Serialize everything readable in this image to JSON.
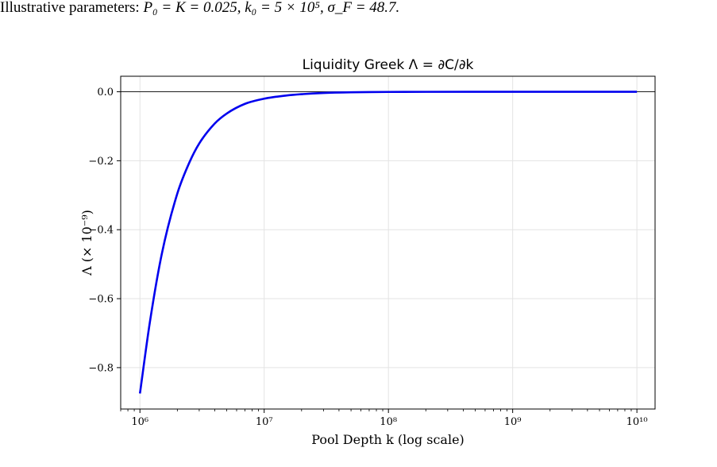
{
  "caption": {
    "lead": "Illustrative parameters:",
    "math": "P₀ = K = 0.025, k₀ = 5 × 10⁵, σ_F = 48.7."
  },
  "chart_data": {
    "type": "line",
    "title": "Liquidity Greek Λ = ∂C/∂k",
    "xlabel": "Pool Depth k (log scale)",
    "ylabel": "Λ (× 10⁻⁹)",
    "x_scale": "log",
    "xlim": [
      700000,
      14000000000
    ],
    "ylim": [
      -0.92,
      0.045
    ],
    "x_ticks": [
      1000000,
      10000000,
      100000000,
      1000000000,
      10000000000
    ],
    "x_tick_labels": [
      "10⁶",
      "10⁷",
      "10⁸",
      "10⁹",
      "10¹⁰"
    ],
    "y_ticks": [
      0.0,
      -0.2,
      -0.4,
      -0.6,
      -0.8
    ],
    "y_tick_labels": [
      "0.0",
      "−0.2",
      "−0.4",
      "−0.6",
      "−0.8"
    ],
    "grid": true,
    "reference_line_y": 0.0,
    "series_color": "#0000ee",
    "series": [
      {
        "x": [
          1000000,
          1200000,
          1500000,
          2000000,
          2500000,
          3000000,
          4000000,
          5000000,
          7000000,
          10000000,
          15000000,
          20000000,
          30000000,
          50000000,
          100000000,
          200000000,
          1000000000,
          10000000000
        ],
        "values": [
          -0.875,
          -0.67,
          -0.47,
          -0.295,
          -0.205,
          -0.15,
          -0.092,
          -0.063,
          -0.035,
          -0.02,
          -0.011,
          -0.007,
          -0.0035,
          -0.0015,
          -0.0005,
          -0.0002,
          0.0,
          0.0
        ]
      }
    ]
  }
}
